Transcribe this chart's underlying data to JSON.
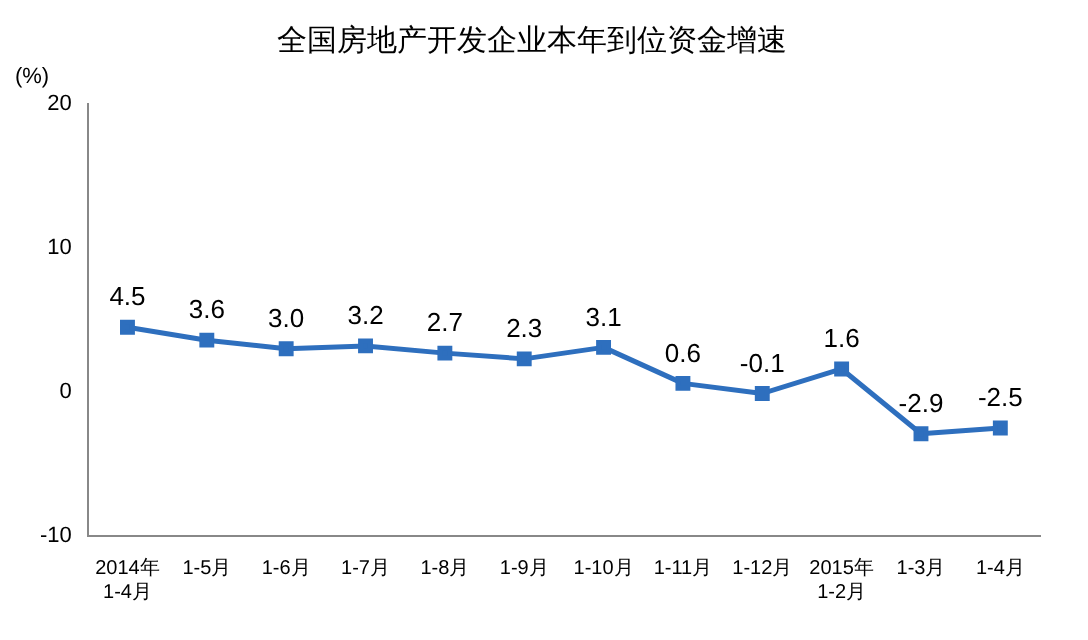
{
  "chart_data": {
    "type": "line",
    "title": "全国房地产开发企业本年到位资金增速",
    "ylabel": "(%)",
    "categories": [
      "2014年\n1-4月",
      "1-5月",
      "1-6月",
      "1-7月",
      "1-8月",
      "1-9月",
      "1-10月",
      "1-11月",
      "1-12月",
      "2015年\n1-2月",
      "1-3月",
      "1-4月"
    ],
    "series": [
      {
        "color": "#2e6fbe",
        "values": [
          4.5,
          3.6,
          3.0,
          3.2,
          2.7,
          2.3,
          3.1,
          0.6,
          -0.1,
          1.6,
          -2.9,
          -2.5
        ],
        "value_labels": [
          "4.5",
          "3.6",
          "3.0",
          "3.2",
          "2.7",
          "2.3",
          "3.1",
          "0.6",
          "-0.1",
          "1.6",
          "-2.9",
          "-2.5"
        ]
      }
    ],
    "ylim": [
      -10,
      20
    ],
    "yticks": [
      -10,
      0,
      10,
      20
    ],
    "grid": false,
    "legend": false,
    "marker": "square",
    "line_style": "solid"
  }
}
